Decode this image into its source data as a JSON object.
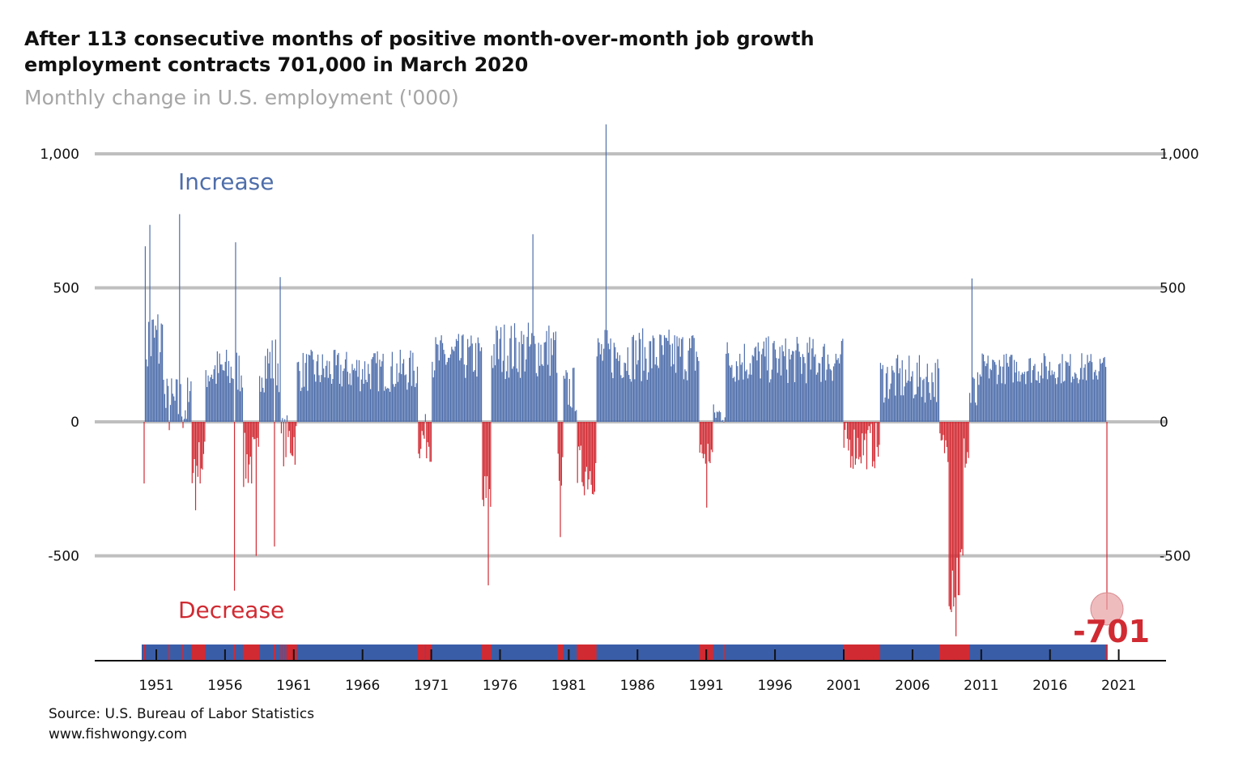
{
  "title_line1": "After 113 consecutive months of positive month-over-month job growth",
  "title_line2": "employment contracts 701,000 in March 2020",
  "subtitle": "Monthly change in U.S. employment ('000)",
  "source_line1": "Source: U.S. Bureau of Labor Statistics",
  "source_line2": "www.fishwongy.com",
  "colors": {
    "increase": "#4e6eab",
    "decrease": "#d12a32",
    "strip_increase": "#3a5da8",
    "grid": "#bfbfbf",
    "highlight": "#e8a0a3"
  },
  "chart_data": {
    "type": "bar",
    "ylabel": "",
    "y_ticks": [
      1000,
      500,
      0,
      -500
    ],
    "y_tick_labels": [
      "1,000",
      "500",
      "0",
      "-500"
    ],
    "ylim": [
      -900,
      1120
    ],
    "x_tick_labels": [
      "1951",
      "1956",
      "1961",
      "1966",
      "1971",
      "1976",
      "1981",
      "1986",
      "1991",
      "1996",
      "2001",
      "2006",
      "2011",
      "2016",
      "2021"
    ],
    "x_start": "1950-01",
    "x_end": "2020-03",
    "increase_label": "Increase",
    "decrease_label": "Decrease",
    "highlight_value": -701,
    "highlight_label": "-701",
    "note": "Monthly values estimated from the plot; key anchors listed below",
    "anchors": [
      {
        "date": "1950-01",
        "value": -230
      },
      {
        "date": "1950-02",
        "value": 655
      },
      {
        "date": "1950-06",
        "value": 735
      },
      {
        "date": "1952-08",
        "value": 775
      },
      {
        "date": "1953-10",
        "value": -330
      },
      {
        "date": "1956-09",
        "value": 670
      },
      {
        "date": "1956-08",
        "value": -630
      },
      {
        "date": "1958-03",
        "value": -500
      },
      {
        "date": "1959-12",
        "value": 540
      },
      {
        "date": "1959-07",
        "value": -465
      },
      {
        "date": "1975-02",
        "value": -610
      },
      {
        "date": "1978-05",
        "value": 700
      },
      {
        "date": "1980-05",
        "value": -430
      },
      {
        "date": "1983-09",
        "value": 1110
      },
      {
        "date": "1991-01",
        "value": -320
      },
      {
        "date": "2009-03",
        "value": -800
      },
      {
        "date": "2010-05",
        "value": 535
      },
      {
        "date": "2020-03",
        "value": -701
      }
    ]
  }
}
